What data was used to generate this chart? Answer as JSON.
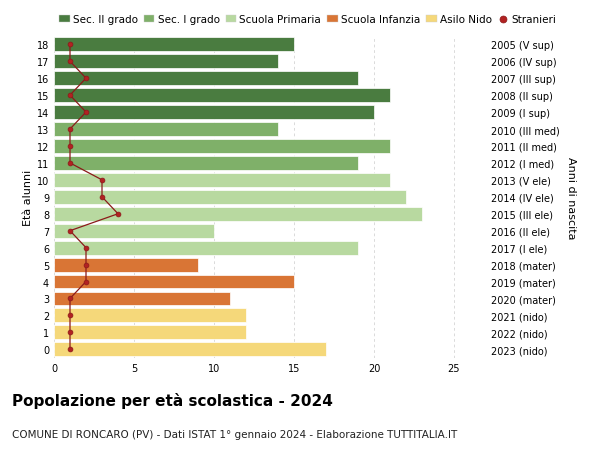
{
  "ages": [
    18,
    17,
    16,
    15,
    14,
    13,
    12,
    11,
    10,
    9,
    8,
    7,
    6,
    5,
    4,
    3,
    2,
    1,
    0
  ],
  "right_labels": [
    "2005 (V sup)",
    "2006 (IV sup)",
    "2007 (III sup)",
    "2008 (II sup)",
    "2009 (I sup)",
    "2010 (III med)",
    "2011 (II med)",
    "2012 (I med)",
    "2013 (V ele)",
    "2014 (IV ele)",
    "2015 (III ele)",
    "2016 (II ele)",
    "2017 (I ele)",
    "2018 (mater)",
    "2019 (mater)",
    "2020 (mater)",
    "2021 (nido)",
    "2022 (nido)",
    "2023 (nido)"
  ],
  "bar_values": [
    15,
    14,
    19,
    21,
    20,
    14,
    21,
    19,
    21,
    22,
    23,
    10,
    19,
    9,
    15,
    11,
    12,
    12,
    17
  ],
  "bar_colors": [
    "#4a7c40",
    "#4a7c40",
    "#4a7c40",
    "#4a7c40",
    "#4a7c40",
    "#7fb069",
    "#7fb069",
    "#7fb069",
    "#b8d9a0",
    "#b8d9a0",
    "#b8d9a0",
    "#b8d9a0",
    "#b8d9a0",
    "#d97535",
    "#d97535",
    "#d97535",
    "#f5d87a",
    "#f5d87a",
    "#f5d87a"
  ],
  "stranieri_values": [
    1,
    1,
    2,
    1,
    2,
    1,
    1,
    1,
    3,
    3,
    4,
    1,
    2,
    2,
    2,
    1,
    1,
    1,
    1
  ],
  "legend_labels": [
    "Sec. II grado",
    "Sec. I grado",
    "Scuola Primaria",
    "Scuola Infanzia",
    "Asilo Nido",
    "Stranieri"
  ],
  "legend_colors": [
    "#4a7c40",
    "#7fb069",
    "#b8d9a0",
    "#d97535",
    "#f5d87a",
    "#b22222"
  ],
  "title": "Popolazione per età scolastica - 2024",
  "subtitle": "COMUNE DI RONCARO (PV) - Dati ISTAT 1° gennaio 2024 - Elaborazione TUTTITALIA.IT",
  "ylabel": "Età alunni",
  "right_ylabel": "Anni di nascita",
  "xlim": [
    0,
    27
  ],
  "ylim": [
    -0.5,
    18.5
  ],
  "bar_height": 0.82,
  "bg_color": "#ffffff",
  "grid_color": "#cccccc",
  "title_fontsize": 11,
  "subtitle_fontsize": 7.5,
  "tick_fontsize": 7,
  "legend_fontsize": 7.5,
  "ylabel_fontsize": 8,
  "xticks": [
    0,
    5,
    10,
    15,
    20,
    25
  ]
}
